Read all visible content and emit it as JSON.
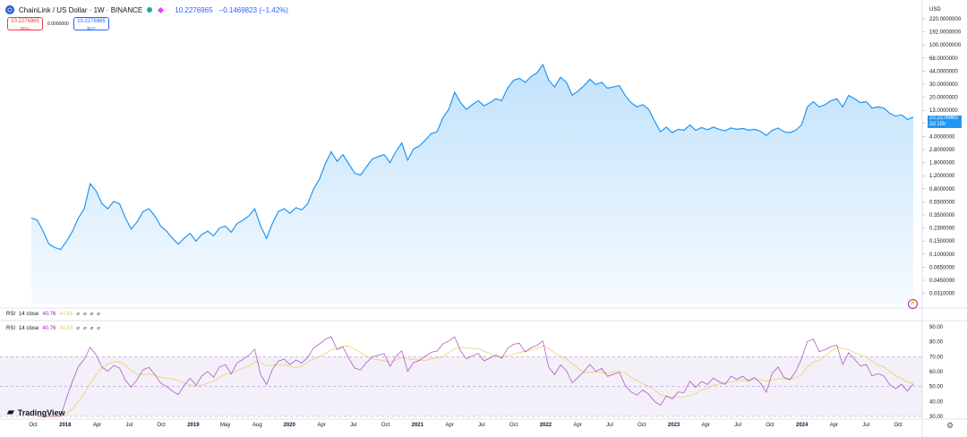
{
  "header": {
    "symbol": "ChainLink / US Dollar · 1W · BINANCE",
    "logo_icon": "chainlink-logo",
    "price": "10.2276965",
    "change": "−0.1469823 (−1.42%)"
  },
  "trade": {
    "sell_price": "10.2276965",
    "sell_label": "SELL",
    "spread": "0.0000000",
    "buy_price": "10.2276965",
    "buy_label": "BUY"
  },
  "price_axis": {
    "currency": "USD",
    "ticks": [
      "220.0000000",
      "192.0000000",
      "100.0000000",
      "68.0000000",
      "44.0000000",
      "30.0000000",
      "20.0000000",
      "13.0000000",
      "6.0000000",
      "4.0000000",
      "2.8000000",
      "1.8000000",
      "1.2000000",
      "0.8000000",
      "0.5500000",
      "0.3500000",
      "0.2300000",
      "0.1500000",
      "0.1000000",
      "0.0650000",
      "0.0450000",
      "0.0310000"
    ],
    "current_price": "10.2276965",
    "countdown": "2d 15h"
  },
  "rsi": {
    "legend_name": "RSI",
    "legend_params": "14 close",
    "legend_rsi_value": "40.76",
    "legend_ma_value": "44.68",
    "ticks": [
      "90.00",
      "80.00",
      "70.00",
      "60.00",
      "50.00",
      "40.00",
      "30.00"
    ]
  },
  "time_axis": {
    "labels": [
      {
        "t": "Oct",
        "yr": false
      },
      {
        "t": "2018",
        "yr": true
      },
      {
        "t": "Apr",
        "yr": false
      },
      {
        "t": "Jul",
        "yr": false
      },
      {
        "t": "Oct",
        "yr": false
      },
      {
        "t": "2019",
        "yr": true
      },
      {
        "t": "May",
        "yr": false
      },
      {
        "t": "Aug",
        "yr": false
      },
      {
        "t": "2020",
        "yr": true
      },
      {
        "t": "Apr",
        "yr": false
      },
      {
        "t": "Jul",
        "yr": false
      },
      {
        "t": "Oct",
        "yr": false
      },
      {
        "t": "2021",
        "yr": true
      },
      {
        "t": "Apr",
        "yr": false
      },
      {
        "t": "Jul",
        "yr": false
      },
      {
        "t": "Oct",
        "yr": false
      },
      {
        "t": "2022",
        "yr": true
      },
      {
        "t": "Apr",
        "yr": false
      },
      {
        "t": "Jul",
        "yr": false
      },
      {
        "t": "Oct",
        "yr": false
      },
      {
        "t": "2023",
        "yr": true
      },
      {
        "t": "Apr",
        "yr": false
      },
      {
        "t": "Jul",
        "yr": false
      },
      {
        "t": "Oct",
        "yr": false
      },
      {
        "t": "2024",
        "yr": true
      },
      {
        "t": "Apr",
        "yr": false
      },
      {
        "t": "Jul",
        "yr": false
      },
      {
        "t": "Oct",
        "yr": false
      }
    ]
  },
  "branding": {
    "name": "TradingView"
  },
  "colors": {
    "price_line": "#2196f3",
    "rsi_line": "#9c27b0",
    "rsi_ma": "#e6d36a",
    "band": "#7e57c2"
  },
  "chart_data": {
    "type": "area",
    "price_series": [
      0.45,
      0.42,
      0.3,
      0.2,
      0.18,
      0.17,
      0.22,
      0.3,
      0.45,
      0.6,
      1.3,
      1.05,
      0.7,
      0.6,
      0.75,
      0.7,
      0.45,
      0.32,
      0.4,
      0.55,
      0.6,
      0.48,
      0.35,
      0.3,
      0.24,
      0.2,
      0.24,
      0.28,
      0.22,
      0.27,
      0.3,
      0.26,
      0.33,
      0.35,
      0.29,
      0.38,
      0.42,
      0.48,
      0.6,
      0.35,
      0.24,
      0.38,
      0.55,
      0.6,
      0.52,
      0.62,
      0.58,
      0.7,
      1.1,
      1.5,
      2.4,
      3.5,
      2.6,
      3.2,
      2.4,
      1.8,
      1.7,
      2.2,
      2.8,
      3.0,
      3.2,
      2.5,
      3.5,
      4.6,
      2.7,
      3.8,
      4.2,
      5.0,
      6.1,
      6.5,
      10.0,
      13.0,
      22.0,
      16.0,
      13.0,
      15.0,
      17.0,
      14.5,
      16.0,
      18.0,
      17.0,
      25.0,
      32.0,
      34.0,
      30.0,
      36.0,
      40.0,
      52.0,
      32.0,
      26.0,
      35.0,
      30.0,
      20.0,
      23.0,
      27.0,
      33.0,
      28.0,
      30.0,
      25.0,
      26.0,
      27.0,
      20.0,
      16.0,
      14.0,
      15.0,
      13.0,
      9.0,
      6.5,
      7.5,
      6.3,
      7.0,
      6.8,
      8.0,
      6.8,
      7.4,
      6.9,
      7.5,
      7.0,
      6.7,
      7.3,
      7.0,
      7.2,
      6.8,
      7.0,
      6.6,
      5.8,
      6.8,
      7.3,
      6.5,
      6.3,
      6.8,
      8.0,
      14.0,
      16.5,
      14.0,
      15.0,
      17.0,
      18.0,
      14.0,
      20.0,
      18.0,
      16.0,
      16.5,
      13.5,
      14.0,
      13.5,
      11.5,
      10.5,
      11.0,
      9.5,
      10.2
    ]
  }
}
